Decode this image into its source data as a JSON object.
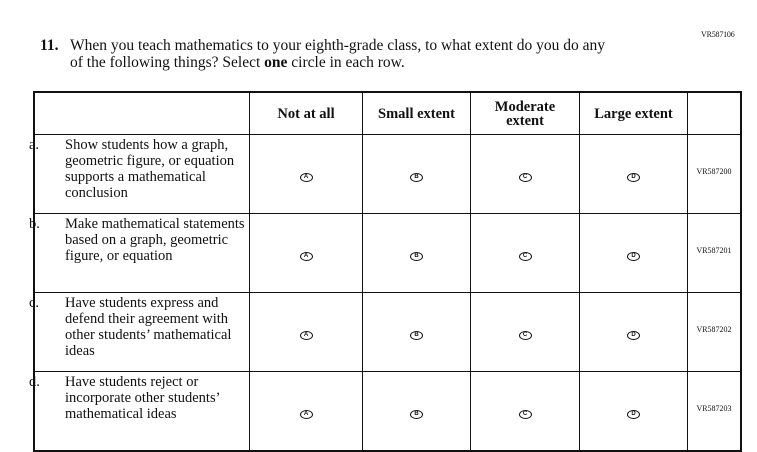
{
  "question_code": "VR587106",
  "question": {
    "number": "11.",
    "line1": "When you teach mathematics to your eighth-grade class, to what extent do you do any",
    "line2_pre": "of the following things? Select ",
    "line2_bold": "one",
    "line2_post": " circle in each row."
  },
  "columns": [
    "Not at all",
    "Small extent",
    "Moderate extent",
    "Large extent"
  ],
  "option_letters": [
    "A",
    "B",
    "C",
    "D"
  ],
  "rows": [
    {
      "letter": "a.",
      "text": "Show students how a graph, geometric figure, or equation supports a mathematical conclusion",
      "code": "VR587200"
    },
    {
      "letter": "b.",
      "text": "Make mathematical statements based on a graph, geometric figure, or equation",
      "code": "VR587201"
    },
    {
      "letter": "c.",
      "text": "Have students express and defend their agreement with other students’ mathematical ideas",
      "code": "VR587202"
    },
    {
      "letter": "d.",
      "text": "Have students reject or incorporate other students’ mathematical ideas",
      "code": "VR587203"
    }
  ]
}
